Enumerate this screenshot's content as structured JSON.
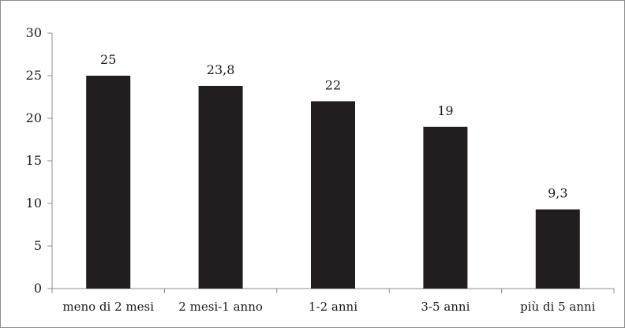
{
  "chart_data": {
    "type": "bar",
    "categories": [
      "meno di 2 mesi",
      "2 mesi-1 anno",
      "1-2 anni",
      "3-5 anni",
      "più di 5 anni"
    ],
    "values": [
      25,
      23.8,
      22,
      19,
      9.3
    ],
    "data_labels": [
      "25",
      "23,8",
      "22",
      "19",
      "9,3"
    ],
    "title": "",
    "xlabel": "",
    "ylabel": "",
    "ylim": [
      0,
      30
    ],
    "yticks": [
      0,
      5,
      10,
      15,
      20,
      25,
      30
    ],
    "grid": false,
    "legend": "none",
    "bar_color": "#221e1f",
    "axis_color": "#8c8c8c"
  }
}
